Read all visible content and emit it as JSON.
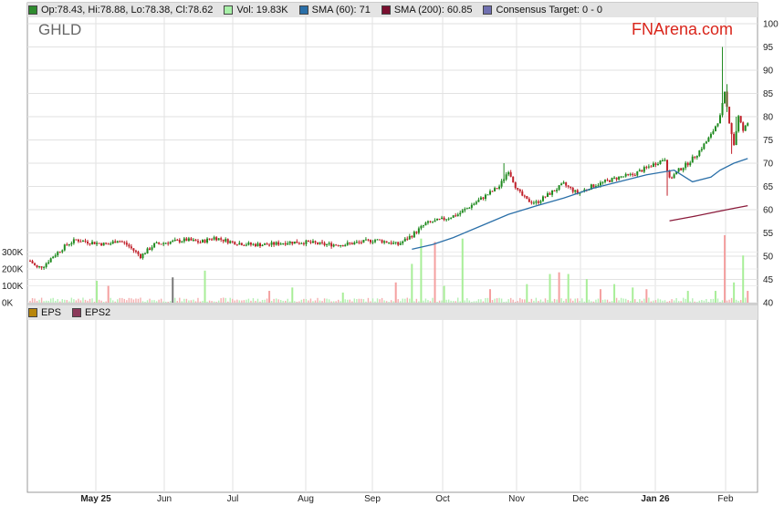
{
  "legend": [
    {
      "label": "Op:78.43, Hi:78.88, Lo:78.38, Cl:78.62",
      "color": "#2e8b2e"
    },
    {
      "label": "Vol: 19.83K",
      "color": "#a8f0a8"
    },
    {
      "label": "SMA (60): 71",
      "color": "#2a6fa8"
    },
    {
      "label": "SMA (200): 60.85",
      "color": "#7a1030"
    },
    {
      "label": "Consensus Target: 0 - 0",
      "color": "#7070b0"
    }
  ],
  "ticker": "GHLD",
  "brand": "FNArena.com",
  "eps_legend": [
    {
      "label": "EPS",
      "color": "#b8860b"
    },
    {
      "label": "EPS2",
      "color": "#8b3a5a"
    }
  ],
  "chart_data": {
    "type": "candlestick",
    "price_axis": {
      "ticks": [
        40,
        45,
        50,
        55,
        60,
        65,
        70,
        75,
        80,
        85,
        90,
        95,
        100
      ],
      "ylim": [
        40,
        101.5
      ]
    },
    "volume_axis": {
      "ticks": [
        "300K",
        "200K",
        "100K",
        "0K"
      ],
      "tick_values": [
        300000,
        200000,
        100000,
        0
      ]
    },
    "date_ticks": [
      {
        "label": "May 25",
        "bold": true
      },
      {
        "label": "Jun",
        "bold": false
      },
      {
        "label": "Jul",
        "bold": false
      },
      {
        "label": "Aug",
        "bold": false
      },
      {
        "label": "Sep",
        "bold": false
      },
      {
        "label": "Oct",
        "bold": false
      },
      {
        "label": "Nov",
        "bold": false
      },
      {
        "label": "Dec",
        "bold": false
      },
      {
        "label": "Jan 26",
        "bold": true
      },
      {
        "label": "Feb",
        "bold": false
      }
    ],
    "price_knots": [
      [
        0,
        49.0
      ],
      [
        3,
        47.5
      ],
      [
        6,
        48.0
      ],
      [
        10,
        50.0
      ],
      [
        16,
        52.5
      ],
      [
        20,
        53.5
      ],
      [
        26,
        53.0
      ],
      [
        34,
        52.5
      ],
      [
        38,
        53.5
      ],
      [
        42,
        52.5
      ],
      [
        48,
        50.0
      ],
      [
        54,
        52.5
      ],
      [
        60,
        53.0
      ],
      [
        68,
        53.5
      ],
      [
        74,
        53.0
      ],
      [
        80,
        54.0
      ],
      [
        88,
        53.0
      ],
      [
        96,
        52.5
      ],
      [
        104,
        52.5
      ],
      [
        112,
        53.0
      ],
      [
        120,
        53.0
      ],
      [
        128,
        52.5
      ],
      [
        136,
        52.5
      ],
      [
        144,
        53.0
      ],
      [
        150,
        53.5
      ],
      [
        156,
        53.0
      ],
      [
        160,
        52.5
      ],
      [
        166,
        54.5
      ],
      [
        172,
        57.0
      ],
      [
        180,
        58.0
      ],
      [
        186,
        59.0
      ],
      [
        192,
        61.0
      ],
      [
        198,
        63.0
      ],
      [
        204,
        65.0
      ],
      [
        208,
        68.5
      ],
      [
        212,
        64.0
      ],
      [
        216,
        62.0
      ],
      [
        220,
        61.5
      ],
      [
        226,
        63.5
      ],
      [
        232,
        65.5
      ],
      [
        238,
        63.5
      ],
      [
        244,
        65.0
      ],
      [
        250,
        66.0
      ],
      [
        256,
        67.0
      ],
      [
        262,
        67.5
      ],
      [
        268,
        69.0
      ],
      [
        272,
        70.0
      ],
      [
        276,
        71.0
      ],
      [
        278,
        66.5
      ],
      [
        282,
        68.5
      ],
      [
        286,
        70.0
      ],
      [
        290,
        72.0
      ],
      [
        296,
        76.0
      ],
      [
        300,
        80.0
      ],
      [
        302,
        85.0
      ],
      [
        304,
        79.0
      ],
      [
        306,
        74.0
      ],
      [
        308,
        80.0
      ],
      [
        310,
        77.0
      ],
      [
        312,
        78.6
      ]
    ],
    "spikes": [
      [
        206,
        0.0,
        70.0
      ],
      [
        277,
        63.0,
        0.0
      ],
      [
        301,
        0.0,
        95.0
      ],
      [
        303,
        0.0,
        87.0
      ],
      [
        305,
        72.0,
        0.0
      ],
      [
        307,
        0.0,
        80.0
      ]
    ],
    "volume_spikes": [
      [
        29,
        130000
      ],
      [
        34,
        100000
      ],
      [
        62,
        150000
      ],
      [
        76,
        190000
      ],
      [
        104,
        70000
      ],
      [
        114,
        90000
      ],
      [
        136,
        60000
      ],
      [
        159,
        120000
      ],
      [
        166,
        230000
      ],
      [
        170,
        380000
      ],
      [
        176,
        360000
      ],
      [
        180,
        100000
      ],
      [
        188,
        380000
      ],
      [
        200,
        80000
      ],
      [
        216,
        110000
      ],
      [
        226,
        170000
      ],
      [
        230,
        180000
      ],
      [
        234,
        170000
      ],
      [
        242,
        140000
      ],
      [
        248,
        80000
      ],
      [
        254,
        110000
      ],
      [
        262,
        90000
      ],
      [
        268,
        80000
      ],
      [
        286,
        70000
      ],
      [
        298,
        70000
      ],
      [
        302,
        400000
      ],
      [
        306,
        120000
      ],
      [
        310,
        280000
      ],
      [
        312,
        70000
      ]
    ],
    "sma60": [
      [
        166,
        51.5
      ],
      [
        175,
        52.5
      ],
      [
        184,
        54.0
      ],
      [
        196,
        56.5
      ],
      [
        208,
        59.0
      ],
      [
        220,
        60.8
      ],
      [
        232,
        62.5
      ],
      [
        244,
        64.5
      ],
      [
        256,
        66.0
      ],
      [
        268,
        67.5
      ],
      [
        280,
        68.5
      ],
      [
        288,
        66.0
      ],
      [
        296,
        67.0
      ],
      [
        300,
        68.5
      ],
      [
        306,
        70.0
      ],
      [
        312,
        71.0
      ]
    ],
    "sma200": [
      [
        278,
        57.6
      ],
      [
        288,
        58.5
      ],
      [
        298,
        59.5
      ],
      [
        306,
        60.3
      ],
      [
        312,
        60.85
      ]
    ]
  }
}
